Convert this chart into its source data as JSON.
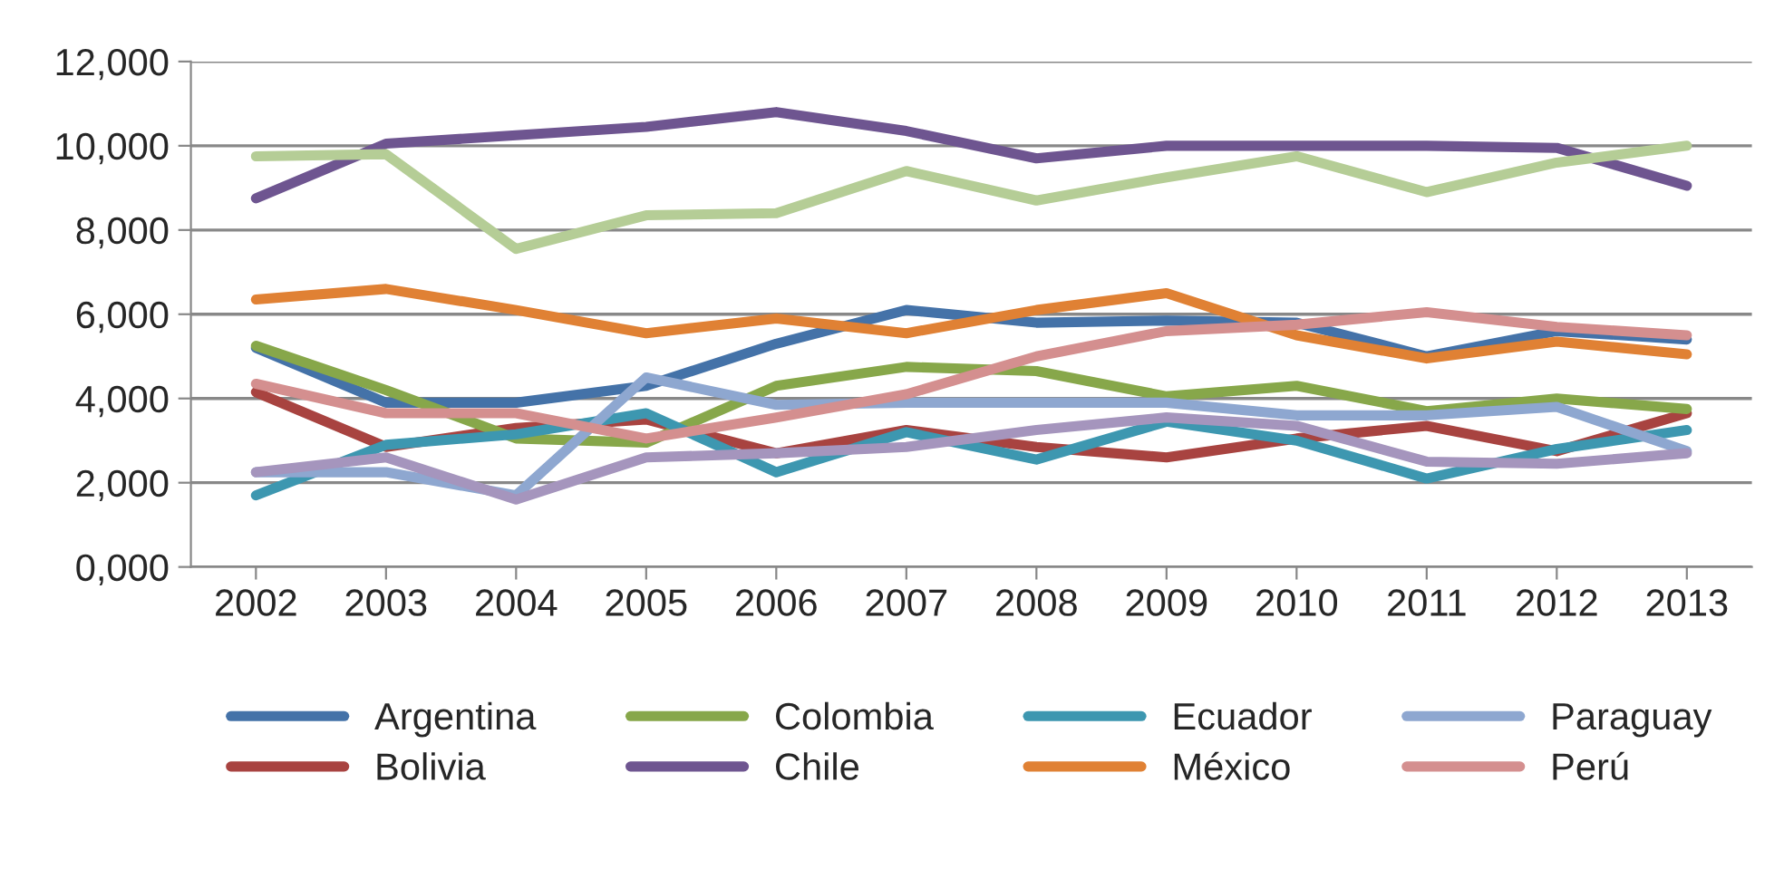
{
  "chart_data": {
    "type": "line",
    "categories": [
      "2002",
      "2003",
      "2004",
      "2005",
      "2006",
      "2007",
      "2008",
      "2009",
      "2010",
      "2011",
      "2012",
      "2013"
    ],
    "series": [
      {
        "name": "Argentina",
        "color": "#4472a8",
        "values": [
          5200,
          3900,
          3900,
          4300,
          5300,
          6100,
          5800,
          5850,
          5800,
          5000,
          5600,
          5400
        ]
      },
      {
        "name": "Bolivia",
        "color": "#a84340",
        "values": [
          4150,
          2850,
          3300,
          3500,
          2700,
          3250,
          2850,
          2600,
          3050,
          3350,
          2750,
          3650
        ]
      },
      {
        "name": "Colombia",
        "color": "#87a74a",
        "values": [
          5250,
          4200,
          3050,
          2950,
          4300,
          4750,
          4650,
          4050,
          4300,
          3700,
          4000,
          3750
        ]
      },
      {
        "name": "Chile",
        "color": "#6e5590",
        "values": [
          8750,
          10050,
          10250,
          10450,
          10800,
          10350,
          9700,
          10000,
          10000,
          10000,
          9950,
          9050
        ]
      },
      {
        "name": "Ecuador",
        "color": "#3d97b0",
        "values": [
          1700,
          2900,
          3150,
          3650,
          2250,
          3200,
          2550,
          3450,
          3000,
          2100,
          2800,
          3250
        ]
      },
      {
        "name": "México",
        "color": "#e08134",
        "values": [
          6350,
          6600,
          6100,
          5550,
          5900,
          5550,
          6100,
          6500,
          5500,
          4950,
          5350,
          5050
        ]
      },
      {
        "name": "Paraguay",
        "color": "#8ea7d0",
        "values": [
          2250,
          2250,
          1700,
          4500,
          3850,
          3900,
          3900,
          3900,
          3600,
          3600,
          3800,
          2750
        ]
      },
      {
        "name": "Perú",
        "color": "#d48f8f",
        "values": [
          4350,
          3650,
          3650,
          3050,
          3550,
          4100,
          5000,
          5600,
          5750,
          6050,
          5700,
          5500
        ]
      },
      {
        "color": "#b5cd96",
        "values": [
          9750,
          9800,
          7550,
          8350,
          8400,
          9400,
          8700,
          9250,
          9750,
          8900,
          9600,
          10000
        ]
      },
      {
        "color": "#a595bd",
        "values": [
          2250,
          2600,
          1600,
          2600,
          2700,
          2850,
          3250,
          3550,
          3350,
          2500,
          2450,
          2700
        ]
      }
    ],
    "ylim": [
      0,
      12000
    ],
    "yticks": [
      {
        "value": 0,
        "label": "0,000"
      },
      {
        "value": 2000,
        "label": "2,000"
      },
      {
        "value": 4000,
        "label": "4,000"
      },
      {
        "value": 6000,
        "label": "6,000"
      },
      {
        "value": 8000,
        "label": "8,000"
      },
      {
        "value": 10000,
        "label": "10,000"
      },
      {
        "value": 12000,
        "label": "12,000"
      }
    ],
    "grid": "y",
    "legend": "bottom",
    "marker": "none",
    "line_style": "solid"
  }
}
